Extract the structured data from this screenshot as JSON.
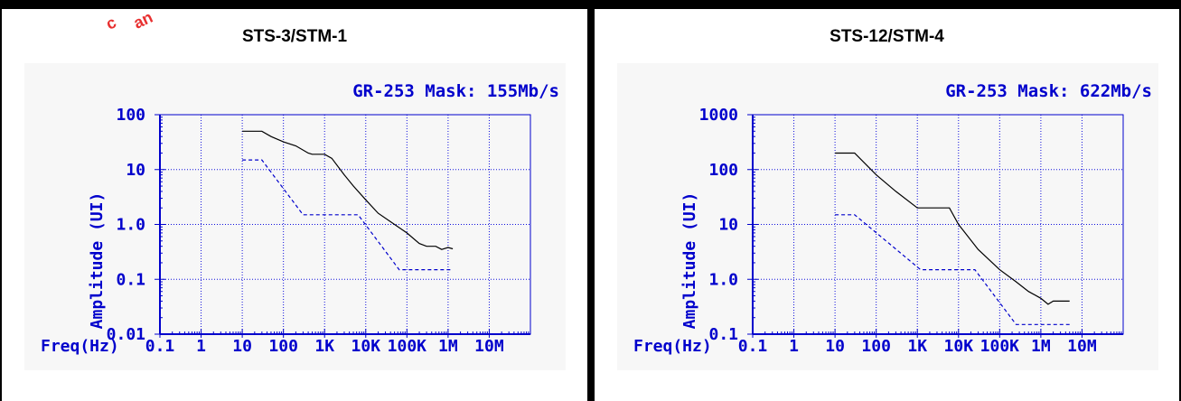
{
  "colors": {
    "axis": "#0000cc",
    "grid": "#1010dd",
    "curve": "#000000",
    "mask": "#0000cc",
    "background": "#f7f7f7"
  },
  "chart_data": [
    {
      "type": "line",
      "title": "STS-3/STM-1",
      "subtitle": "GR-253 Mask: 155Mb/s",
      "xlabel": "Freq(Hz)",
      "ylabel": "Amplitude (UI)",
      "x_scale": "log",
      "y_scale": "log",
      "xlim": [
        0.1,
        100000000
      ],
      "ylim": [
        0.01,
        100
      ],
      "x_ticks": [
        0.1,
        1,
        10,
        100,
        1000,
        10000,
        100000,
        1000000,
        10000000
      ],
      "x_tick_labels": [
        "0.1",
        "1",
        "10",
        "100",
        "1K",
        "10K",
        "100K",
        "1M",
        "10M"
      ],
      "y_ticks": [
        0.01,
        0.1,
        1,
        10,
        100
      ],
      "y_tick_labels": [
        "0.01",
        "0.1",
        "1.0",
        "10",
        "100"
      ],
      "grid": true,
      "series": [
        {
          "style": "solid",
          "x": [
            10,
            30,
            50,
            100,
            200,
            400,
            500,
            1000,
            1500,
            3000,
            5000,
            10000,
            20000,
            50000,
            100000,
            200000,
            300000,
            500000,
            700000,
            1000000,
            1300000
          ],
          "y": [
            50,
            50,
            40,
            32,
            27,
            20,
            19,
            19,
            16,
            8,
            5,
            2.8,
            1.6,
            1.0,
            0.7,
            0.45,
            0.4,
            0.4,
            0.35,
            0.38,
            0.36
          ]
        },
        {
          "style": "dashed",
          "x": [
            10,
            30,
            300,
            2000,
            6500,
            65000,
            1300000
          ],
          "y": [
            15,
            15,
            1.5,
            1.5,
            1.5,
            0.15,
            0.15
          ]
        }
      ]
    },
    {
      "type": "line",
      "title": "STS-12/STM-4",
      "subtitle": "GR-253 Mask: 622Mb/s",
      "xlabel": "Freq(Hz)",
      "ylabel": "Amplitude (UI)",
      "x_scale": "log",
      "y_scale": "log",
      "xlim": [
        0.1,
        100000000
      ],
      "ylim": [
        0.1,
        1000
      ],
      "x_ticks": [
        0.1,
        1,
        10,
        100,
        1000,
        10000,
        100000,
        1000000,
        10000000
      ],
      "x_tick_labels": [
        "0.1",
        "1",
        "10",
        "100",
        "1K",
        "10K",
        "100K",
        "1M",
        "10M"
      ],
      "y_ticks": [
        0.1,
        1,
        10,
        100,
        1000
      ],
      "y_tick_labels": [
        "0.1",
        "1.0",
        "10",
        "100",
        "1000"
      ],
      "grid": true,
      "series": [
        {
          "style": "solid",
          "x": [
            10,
            30,
            100,
            300,
            1000,
            2000,
            6000,
            10000,
            30000,
            100000,
            250000,
            500000,
            1000000,
            1500000,
            2000000,
            5000000
          ],
          "y": [
            200,
            200,
            80,
            40,
            20,
            20,
            20,
            10,
            3.5,
            1.5,
            0.9,
            0.6,
            0.45,
            0.35,
            0.4,
            0.4
          ]
        },
        {
          "style": "dashed",
          "x": [
            10,
            30,
            1200,
            25000,
            250000,
            5000000
          ],
          "y": [
            15,
            15,
            1.5,
            1.5,
            0.15,
            0.15
          ]
        }
      ]
    }
  ]
}
